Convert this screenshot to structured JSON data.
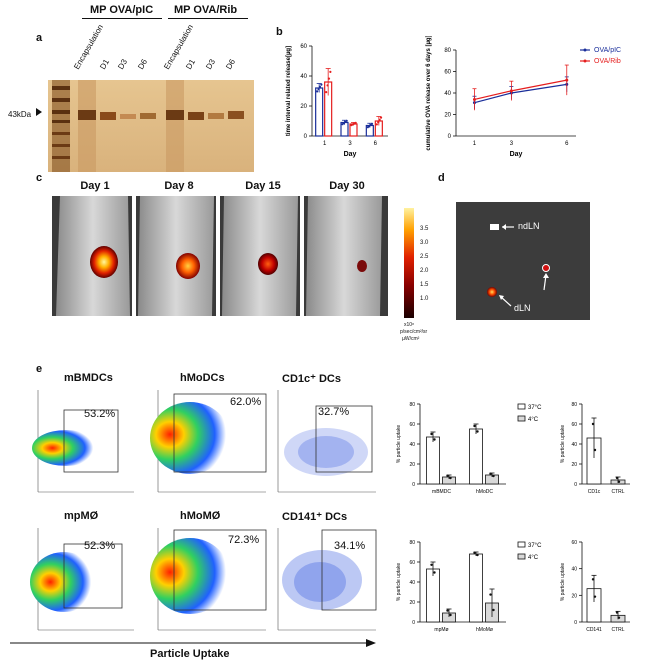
{
  "panel_labels": {
    "a": "a",
    "b": "b",
    "c": "c",
    "d": "d",
    "e": "e"
  },
  "gel": {
    "group_left": "MP OVA/pIC",
    "group_right": "MP OVA/Rib",
    "lanes": [
      "Encapsulation",
      "D1",
      "D3",
      "D6",
      "Encapsulation",
      "D1",
      "D3",
      "D6"
    ],
    "marker_label": "43kDa"
  },
  "chart_b1": {
    "type": "bar",
    "title": "",
    "ylabel": "time interval related release[µg]",
    "xlabel": "Day",
    "categories": [
      "1",
      "3",
      "6"
    ],
    "yticks": [
      "0",
      "20",
      "40",
      "60"
    ],
    "ylim": [
      0,
      60
    ],
    "series": [
      {
        "name": "OVA/pIC",
        "color": "#1a2e9a",
        "values": [
          32,
          9,
          7
        ],
        "err": [
          3,
          1.5,
          1.5
        ]
      },
      {
        "name": "OVA/Rib",
        "color": "#e51e1e",
        "values": [
          36,
          8,
          10
        ],
        "err": [
          9,
          1,
          3
        ]
      }
    ]
  },
  "chart_b2": {
    "type": "line",
    "ylabel": "cumulative OVA release over 6 days [µg]",
    "xlabel": "Day",
    "x": [
      1,
      3,
      6
    ],
    "xticks": [
      "1",
      "3",
      "6"
    ],
    "yticks": [
      "0",
      "20",
      "40",
      "60",
      "80"
    ],
    "ylim": [
      0,
      80
    ],
    "series": [
      {
        "name": "OVA/pIC",
        "color": "#1a2e9a",
        "values": [
          31,
          40,
          48
        ],
        "err": [
          6,
          6,
          7
        ]
      },
      {
        "name": "OVA/Rib",
        "color": "#e51e1e",
        "values": [
          34,
          42,
          52
        ],
        "err": [
          10,
          9,
          14
        ]
      }
    ]
  },
  "imaging": {
    "days": [
      "Day 1",
      "Day 8",
      "Day 15",
      "Day 30"
    ],
    "colorbar_ticks": [
      "3.5",
      "3.0",
      "2.5",
      "2.0",
      "1.5",
      "1.0"
    ],
    "colorbar_unit": "p/sec/cm²/sr",
    "colorbar_exp": "x10⁸",
    "colorbar_sub": "µW/cm²"
  },
  "lymph": {
    "ndln": "ndLN",
    "dln": "dLN"
  },
  "flow": {
    "row1": [
      {
        "title": "mBMDCs",
        "pct": "53.2%"
      },
      {
        "title": "hMoDCs",
        "pct": "62.0%"
      },
      {
        "title": "CD1c⁺ DCs",
        "pct": "32.7%"
      }
    ],
    "row2": [
      {
        "title": "mpMØ",
        "pct": "52.3%"
      },
      {
        "title": "hMoMØ",
        "pct": "72.3%"
      },
      {
        "title": "CD141⁺ DCs",
        "pct": "34.1%"
      }
    ],
    "xaxis_label": "Particle Uptake"
  },
  "chart_e1": {
    "type": "bar",
    "ylabel": "% particle uptake",
    "categories": [
      "mBMDC",
      "hMoDC"
    ],
    "yticks": [
      "0",
      "20",
      "40",
      "60",
      "80"
    ],
    "ylim": [
      0,
      80
    ],
    "legend": [
      {
        "name": "37°C",
        "color": "#ffffff"
      },
      {
        "name": "4°C",
        "color": "#d9d9d9"
      }
    ],
    "series": [
      {
        "name": "37°C",
        "values": [
          47,
          55
        ],
        "err": [
          5,
          5
        ]
      },
      {
        "name": "4°C",
        "values": [
          7,
          9
        ],
        "err": [
          2,
          2
        ]
      }
    ]
  },
  "chart_e2": {
    "type": "bar",
    "ylabel": "% particle uptake",
    "categories": [
      "CD1c",
      "CTRL"
    ],
    "yticks": [
      "0",
      "20",
      "40",
      "60",
      "80"
    ],
    "ylim": [
      0,
      80
    ],
    "values": [
      46,
      4
    ],
    "err": [
      20,
      3
    ]
  },
  "chart_e3": {
    "type": "bar",
    "ylabel": "% particle uptake",
    "categories": [
      "mpMø",
      "hMoMø"
    ],
    "yticks": [
      "0",
      "20",
      "40",
      "60",
      "80"
    ],
    "ylim": [
      0,
      80
    ],
    "legend": [
      {
        "name": "37°C",
        "color": "#ffffff"
      },
      {
        "name": "4°C",
        "color": "#d9d9d9"
      }
    ],
    "series": [
      {
        "name": "37°C",
        "values": [
          53,
          68
        ],
        "err": [
          7,
          2
        ]
      },
      {
        "name": "4°C",
        "values": [
          9,
          19
        ],
        "err": [
          4,
          14
        ]
      }
    ]
  },
  "chart_e4": {
    "type": "bar",
    "ylabel": "% particle uptake",
    "categories": [
      "CD141",
      "CTRL"
    ],
    "yticks": [
      "0",
      "20",
      "40",
      "60"
    ],
    "ylim": [
      0,
      60
    ],
    "values": [
      25,
      5
    ],
    "err": [
      10,
      3
    ]
  }
}
